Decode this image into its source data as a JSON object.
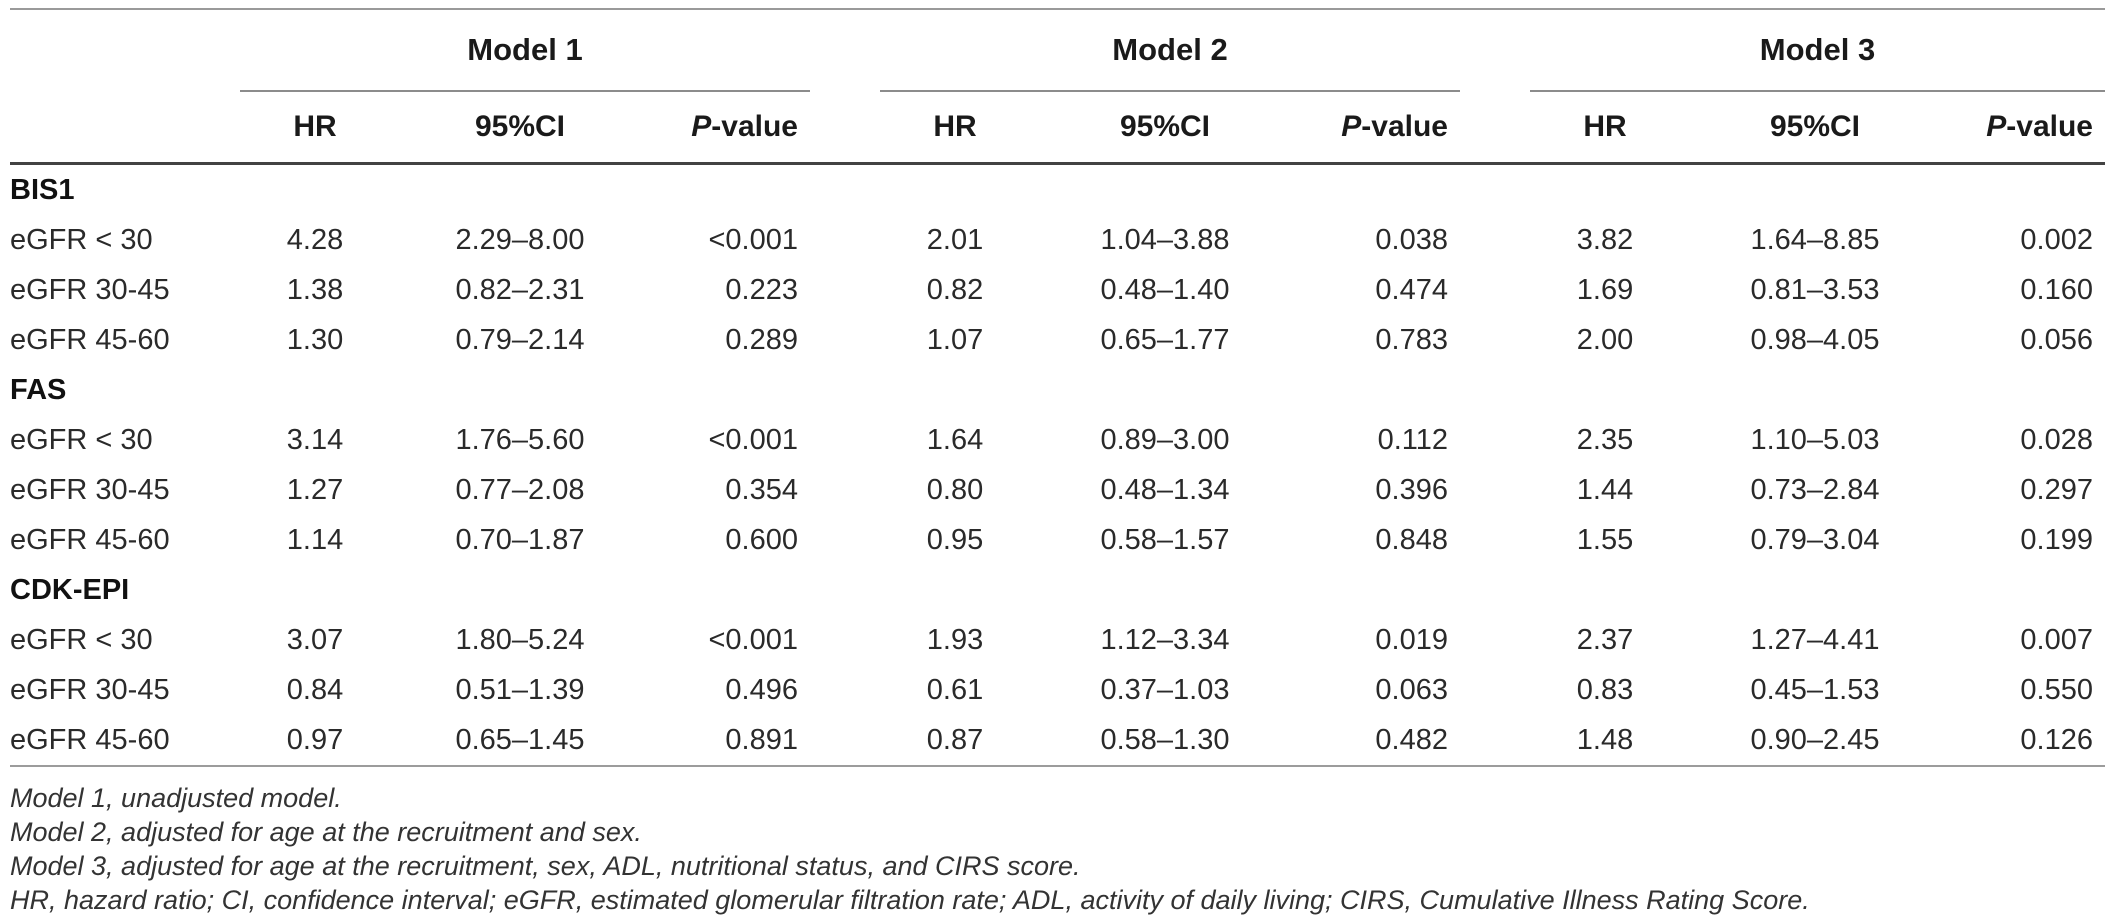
{
  "table": {
    "head": {
      "models": [
        "Model 1",
        "Model 2",
        "Model 3"
      ],
      "hr": "HR",
      "ci": "95%CI",
      "p_head": {
        "italic": "P",
        "rest": "-value"
      }
    },
    "sections": [
      {
        "name": "BIS1",
        "rows": [
          {
            "label": "eGFR < 30",
            "m1": {
              "hr": "4.28",
              "ci": "2.29–8.00",
              "p": "<0.001"
            },
            "m2": {
              "hr": "2.01",
              "ci": "1.04–3.88",
              "p": "0.038"
            },
            "m3": {
              "hr": "3.82",
              "ci": "1.64–8.85",
              "p": "0.002"
            }
          },
          {
            "label": "eGFR 30-45",
            "m1": {
              "hr": "1.38",
              "ci": "0.82–2.31",
              "p": "0.223"
            },
            "m2": {
              "hr": "0.82",
              "ci": "0.48–1.40",
              "p": "0.474"
            },
            "m3": {
              "hr": "1.69",
              "ci": "0.81–3.53",
              "p": "0.160"
            }
          },
          {
            "label": "eGFR 45-60",
            "m1": {
              "hr": "1.30",
              "ci": "0.79–2.14",
              "p": "0.289"
            },
            "m2": {
              "hr": "1.07",
              "ci": "0.65–1.77",
              "p": "0.783"
            },
            "m3": {
              "hr": "2.00",
              "ci": "0.98–4.05",
              "p": "0.056"
            }
          }
        ]
      },
      {
        "name": "FAS",
        "rows": [
          {
            "label": "eGFR < 30",
            "m1": {
              "hr": "3.14",
              "ci": "1.76–5.60",
              "p": "<0.001"
            },
            "m2": {
              "hr": "1.64",
              "ci": "0.89–3.00",
              "p": "0.112"
            },
            "m3": {
              "hr": "2.35",
              "ci": "1.10–5.03",
              "p": "0.028"
            }
          },
          {
            "label": "eGFR 30-45",
            "m1": {
              "hr": "1.27",
              "ci": "0.77–2.08",
              "p": "0.354"
            },
            "m2": {
              "hr": "0.80",
              "ci": "0.48–1.34",
              "p": "0.396"
            },
            "m3": {
              "hr": "1.44",
              "ci": "0.73–2.84",
              "p": "0.297"
            }
          },
          {
            "label": "eGFR 45-60",
            "m1": {
              "hr": "1.14",
              "ci": "0.70–1.87",
              "p": "0.600"
            },
            "m2": {
              "hr": "0.95",
              "ci": "0.58–1.57",
              "p": "0.848"
            },
            "m3": {
              "hr": "1.55",
              "ci": "0.79–3.04",
              "p": "0.199"
            }
          }
        ]
      },
      {
        "name": "CDK-EPI",
        "rows": [
          {
            "label": "eGFR < 30",
            "m1": {
              "hr": "3.07",
              "ci": "1.80–5.24",
              "p": "<0.001"
            },
            "m2": {
              "hr": "1.93",
              "ci": "1.12–3.34",
              "p": "0.019"
            },
            "m3": {
              "hr": "2.37",
              "ci": "1.27–4.41",
              "p": "0.007"
            }
          },
          {
            "label": "eGFR 30-45",
            "m1": {
              "hr": "0.84",
              "ci": "0.51–1.39",
              "p": "0.496"
            },
            "m2": {
              "hr": "0.61",
              "ci": "0.37–1.03",
              "p": "0.063"
            },
            "m3": {
              "hr": "0.83",
              "ci": "0.45–1.53",
              "p": "0.550"
            }
          },
          {
            "label": "eGFR 45-60",
            "m1": {
              "hr": "0.97",
              "ci": "0.65–1.45",
              "p": "0.891"
            },
            "m2": {
              "hr": "0.87",
              "ci": "0.58–1.30",
              "p": "0.482"
            },
            "m3": {
              "hr": "1.48",
              "ci": "0.90–2.45",
              "p": "0.126"
            }
          }
        ]
      }
    ],
    "footnotes": [
      "Model 1, unadjusted model.",
      "Model 2, adjusted for age at the recruitment and sex.",
      "Model 3, adjusted for age at the recruitment, sex, ADL, nutritional status, and CIRS score.",
      "HR, hazard ratio; CI, confidence interval; eGFR, estimated glomerular filtration rate; ADL, activity of daily living; CIRS, Cumulative Illness Rating Score."
    ]
  }
}
